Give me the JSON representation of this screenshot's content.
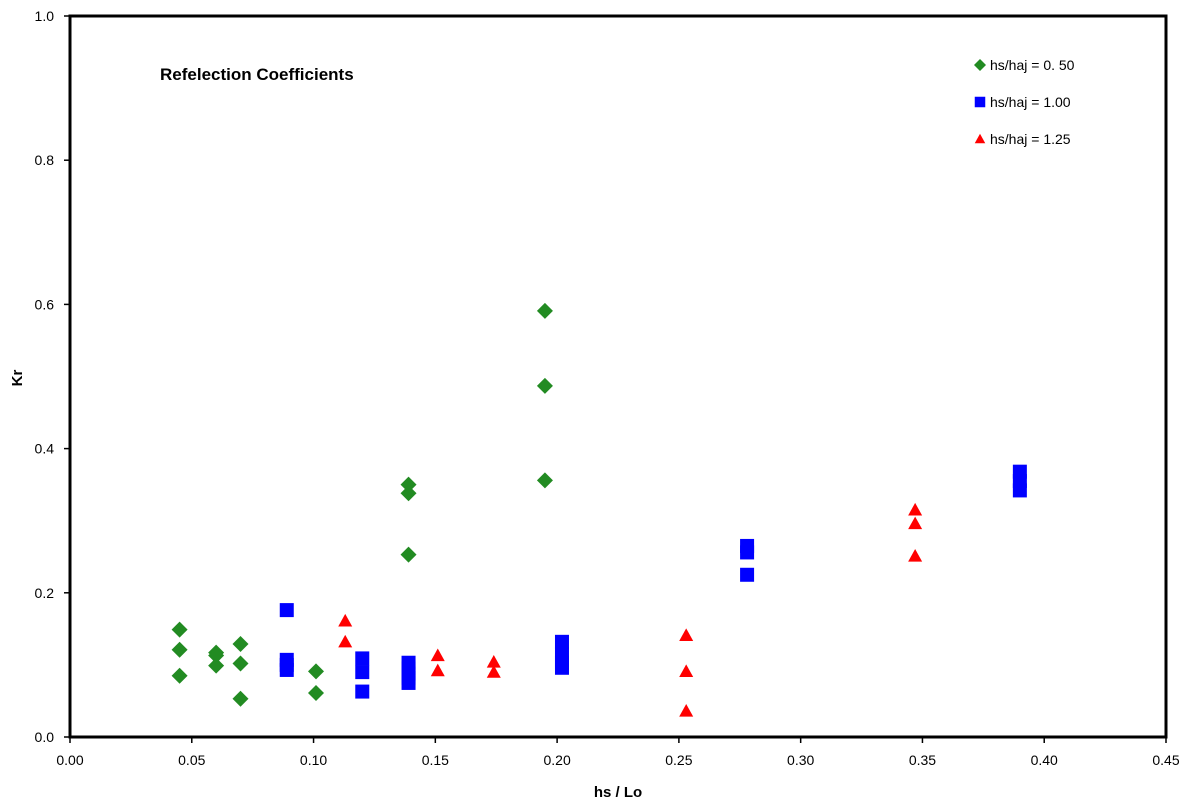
{
  "chart_data": {
    "type": "scatter",
    "title": "Refelection Coefficients",
    "xlabel": "hs / Lo",
    "ylabel": "Kr",
    "xlim": [
      0,
      0.45
    ],
    "ylim": [
      0,
      1.0
    ],
    "xticks": [
      "0.00",
      "0.05",
      "0.10",
      "0.15",
      "0.20",
      "0.25",
      "0.30",
      "0.35",
      "0.40",
      "0.45"
    ],
    "yticks": [
      "0.0",
      "0.2",
      "0.4",
      "0.6",
      "0.8",
      "1.0"
    ],
    "grid": false,
    "legend_position": "top-right",
    "series": [
      {
        "name": "hs/haj = 0. 50",
        "marker": "diamond",
        "color": "#228B22",
        "x": [
          0.045,
          0.045,
          0.045,
          0.06,
          0.06,
          0.06,
          0.07,
          0.07,
          0.07,
          0.101,
          0.101,
          0.139,
          0.139,
          0.139,
          0.195,
          0.195,
          0.195
        ],
        "y": [
          0.149,
          0.121,
          0.085,
          0.117,
          0.113,
          0.099,
          0.129,
          0.102,
          0.053,
          0.091,
          0.061,
          0.35,
          0.338,
          0.253,
          0.591,
          0.487,
          0.356
        ]
      },
      {
        "name": "hs/haj = 1.00",
        "marker": "square",
        "color": "#0000FF",
        "x": [
          0.089,
          0.089,
          0.089,
          0.089,
          0.12,
          0.12,
          0.12,
          0.139,
          0.139,
          0.139,
          0.139,
          0.139,
          0.202,
          0.202,
          0.202,
          0.202,
          0.278,
          0.278,
          0.278,
          0.39,
          0.39,
          0.39
        ],
        "y": [
          0.176,
          0.107,
          0.1,
          0.093,
          0.109,
          0.09,
          0.063,
          0.103,
          0.095,
          0.088,
          0.082,
          0.075,
          0.132,
          0.115,
          0.103,
          0.096,
          0.265,
          0.256,
          0.225,
          0.368,
          0.355,
          0.342
        ]
      },
      {
        "name": "hs/haj = 1.25",
        "marker": "triangle",
        "color": "#FF0000",
        "x": [
          0.113,
          0.113,
          0.151,
          0.151,
          0.174,
          0.174,
          0.253,
          0.253,
          0.253,
          0.347,
          0.347,
          0.347
        ],
        "y": [
          0.161,
          0.132,
          0.113,
          0.092,
          0.104,
          0.09,
          0.141,
          0.091,
          0.036,
          0.315,
          0.296,
          0.251
        ]
      }
    ]
  }
}
